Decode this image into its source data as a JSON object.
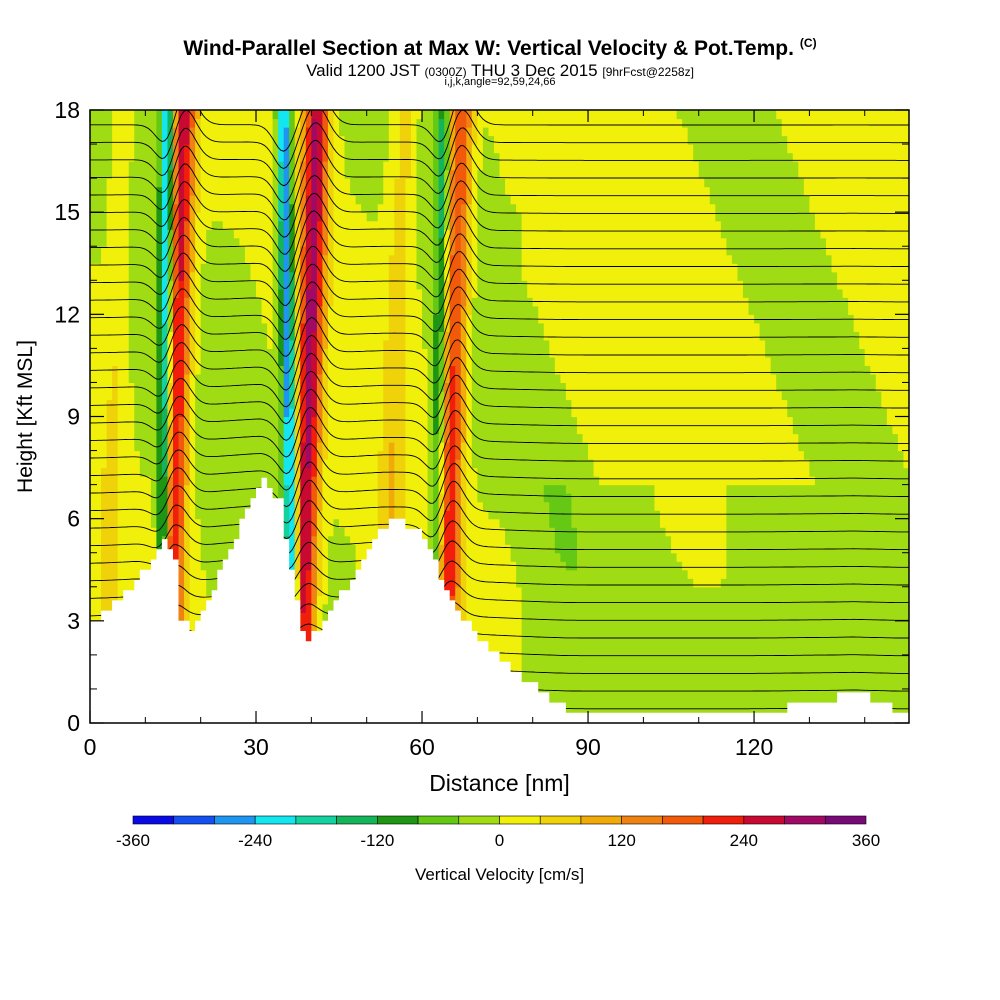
{
  "title": {
    "main": "Wind-Parallel Section at Max W: Vertical Velocity & Pot.Temp.",
    "copyright": "(C)",
    "valid_prefix": "Valid 1200 JST",
    "utc": "(0300Z)",
    "valid_date": "THU 3 Dec 2015",
    "fcst": "[9hrFcst@2258z]",
    "indices": "i,j,k,angle=92,59,24,66"
  },
  "chart_data": {
    "type": "heatmap",
    "xlabel": "Distance [nm]",
    "ylabel": "Height [Kft MSL]",
    "xlim": [
      0,
      148
    ],
    "ylim": [
      0,
      18
    ],
    "x_ticks": [
      "0",
      "30",
      "60",
      "90",
      "120"
    ],
    "x_tick_values": [
      0,
      30,
      60,
      90,
      120
    ],
    "y_ticks": [
      "0",
      "3",
      "6",
      "9",
      "12",
      "15",
      "18"
    ],
    "y_tick_values": [
      0,
      3,
      6,
      9,
      12,
      15,
      18
    ],
    "colorbar": {
      "label": "Vertical Velocity [cm/s]",
      "tick_labels": [
        "-360",
        "-240",
        "-120",
        "0",
        "120",
        "240",
        "360"
      ],
      "tick_values": [
        -360,
        -240,
        -120,
        0,
        120,
        240,
        360
      ],
      "colors": [
        "#0a0ae6",
        "#1450f0",
        "#1e96f0",
        "#14e6f0",
        "#14d2a0",
        "#14b45a",
        "#1e9614",
        "#64c814",
        "#a0dc14",
        "#f0f00a",
        "#f0d20a",
        "#f0aa0a",
        "#f08214",
        "#f05a0a",
        "#f01e0a",
        "#c80a32",
        "#a00a64",
        "#780a78"
      ]
    },
    "terrain": {
      "x": [
        0,
        3,
        6,
        10,
        13,
        15,
        16,
        18,
        21,
        24,
        28,
        31,
        34,
        36,
        38,
        39,
        40,
        43,
        47,
        50,
        53,
        55,
        57,
        59,
        61,
        63,
        66,
        70,
        74,
        78,
        82,
        86,
        90,
        94,
        100,
        106,
        112,
        118,
        124,
        130,
        134,
        138,
        142,
        146,
        148
      ],
      "height": [
        3.0,
        3.3,
        3.8,
        4.6,
        5.3,
        4.8,
        3.0,
        2.7,
        3.6,
        4.8,
        6.2,
        7.2,
        6.5,
        4.5,
        2.6,
        2.3,
        2.6,
        3.3,
        4.2,
        5.1,
        5.8,
        5.9,
        5.8,
        5.6,
        5.1,
        4.2,
        3.2,
        2.5,
        1.9,
        1.3,
        0.8,
        0.4,
        0.3,
        0.3,
        0.3,
        0.3,
        0.3,
        0.3,
        0.4,
        0.6,
        0.7,
        0.9,
        0.6,
        0.3,
        0.3
      ]
    },
    "updraft_bands": [
      {
        "x_top": 17,
        "x_bottom": 14,
        "peak": 260
      },
      {
        "x_top": 41,
        "x_bottom": 38,
        "peak": 280
      },
      {
        "x_top": 67,
        "x_bottom": 64,
        "peak": 220
      },
      {
        "x_top": 6,
        "x_bottom": 3,
        "peak": 40
      },
      {
        "x_top": 57,
        "x_bottom": 53,
        "peak": 60
      }
    ],
    "downdraft_bands": [
      {
        "x_top": 14,
        "x_bottom": 13,
        "peak": -260
      },
      {
        "x_top": 35,
        "x_bottom": 37,
        "peak": -300
      },
      {
        "x_top": 64,
        "x_bottom": 62,
        "peak": -140
      }
    ],
    "isentropes": {
      "count": 34,
      "base_height": 0.4,
      "spacing": 0.52
    }
  }
}
